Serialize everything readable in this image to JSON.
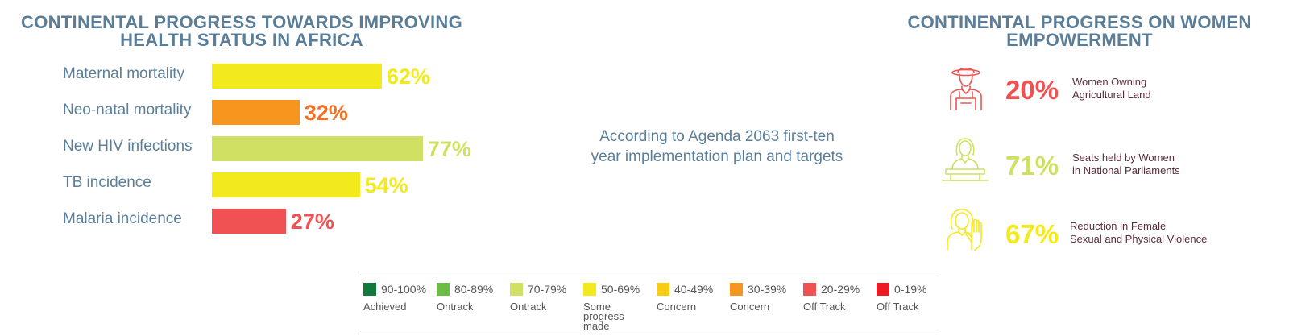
{
  "health_title_lines": [
    "CONTINENTAL PROGRESS TOWARDS IMPROVING",
    "HEALTH STATUS IN AFRICA"
  ],
  "women_title_lines": [
    "CONTINENTAL PROGRESS ON WOMEN",
    "EMPOWERMENT"
  ],
  "center_note_lines": [
    "According to Agenda 2063 first-ten",
    "year implementation plan and targets"
  ],
  "chart_data": {
    "type": "bar",
    "orientation": "horizontal",
    "categories": [
      "Maternal mortality",
      "Neo-natal mortality",
      "New HIV infections",
      "TB incidence",
      "Malaria incidence"
    ],
    "values": [
      62,
      32,
      77,
      54,
      27
    ],
    "value_labels": [
      "62%",
      "32%",
      "77%",
      "54%",
      "27%"
    ],
    "colors": [
      "#f2ea1c",
      "#f7961e",
      "#cfe063",
      "#f2ea1c",
      "#f05253"
    ],
    "label_colors": [
      "#f2ea1c",
      "#f37022",
      "#cfe063",
      "#f2ea1c",
      "#f05253"
    ],
    "xlim": [
      0,
      100
    ]
  },
  "women": [
    {
      "icon": "farmer-woman-icon",
      "value": "20%",
      "color": "#f05253",
      "text": [
        "Women Owning",
        "Agricultural Land"
      ]
    },
    {
      "icon": "woman-at-podium-icon",
      "value": "71%",
      "color": "#cfe063",
      "text": [
        "Seats held by Women",
        "in National Parliaments"
      ]
    },
    {
      "icon": "woman-stop-hand-icon",
      "value": "67%",
      "color": "#f2ea1c",
      "text": [
        "Reduction in Female",
        "Sexual and Physical Violence"
      ]
    }
  ],
  "legend": [
    {
      "range": "90-100%",
      "status": "Achieved",
      "color": "#0f7a3b"
    },
    {
      "range": "80-89%",
      "status": "Ontrack",
      "color": "#6cbd45"
    },
    {
      "range": "70-79%",
      "status": "Ontrack",
      "color": "#cfe063"
    },
    {
      "range": "50-69%",
      "status": "Some progress made",
      "color": "#f2ea1c"
    },
    {
      "range": "40-49%",
      "status": "Concern",
      "color": "#f8cb14"
    },
    {
      "range": "30-39%",
      "status": "Concern",
      "color": "#f7961e"
    },
    {
      "range": "20-29%",
      "status": "Off Track",
      "color": "#f05253"
    },
    {
      "range": "0-19%",
      "status": "Off Track",
      "color": "#ed1c24"
    }
  ]
}
